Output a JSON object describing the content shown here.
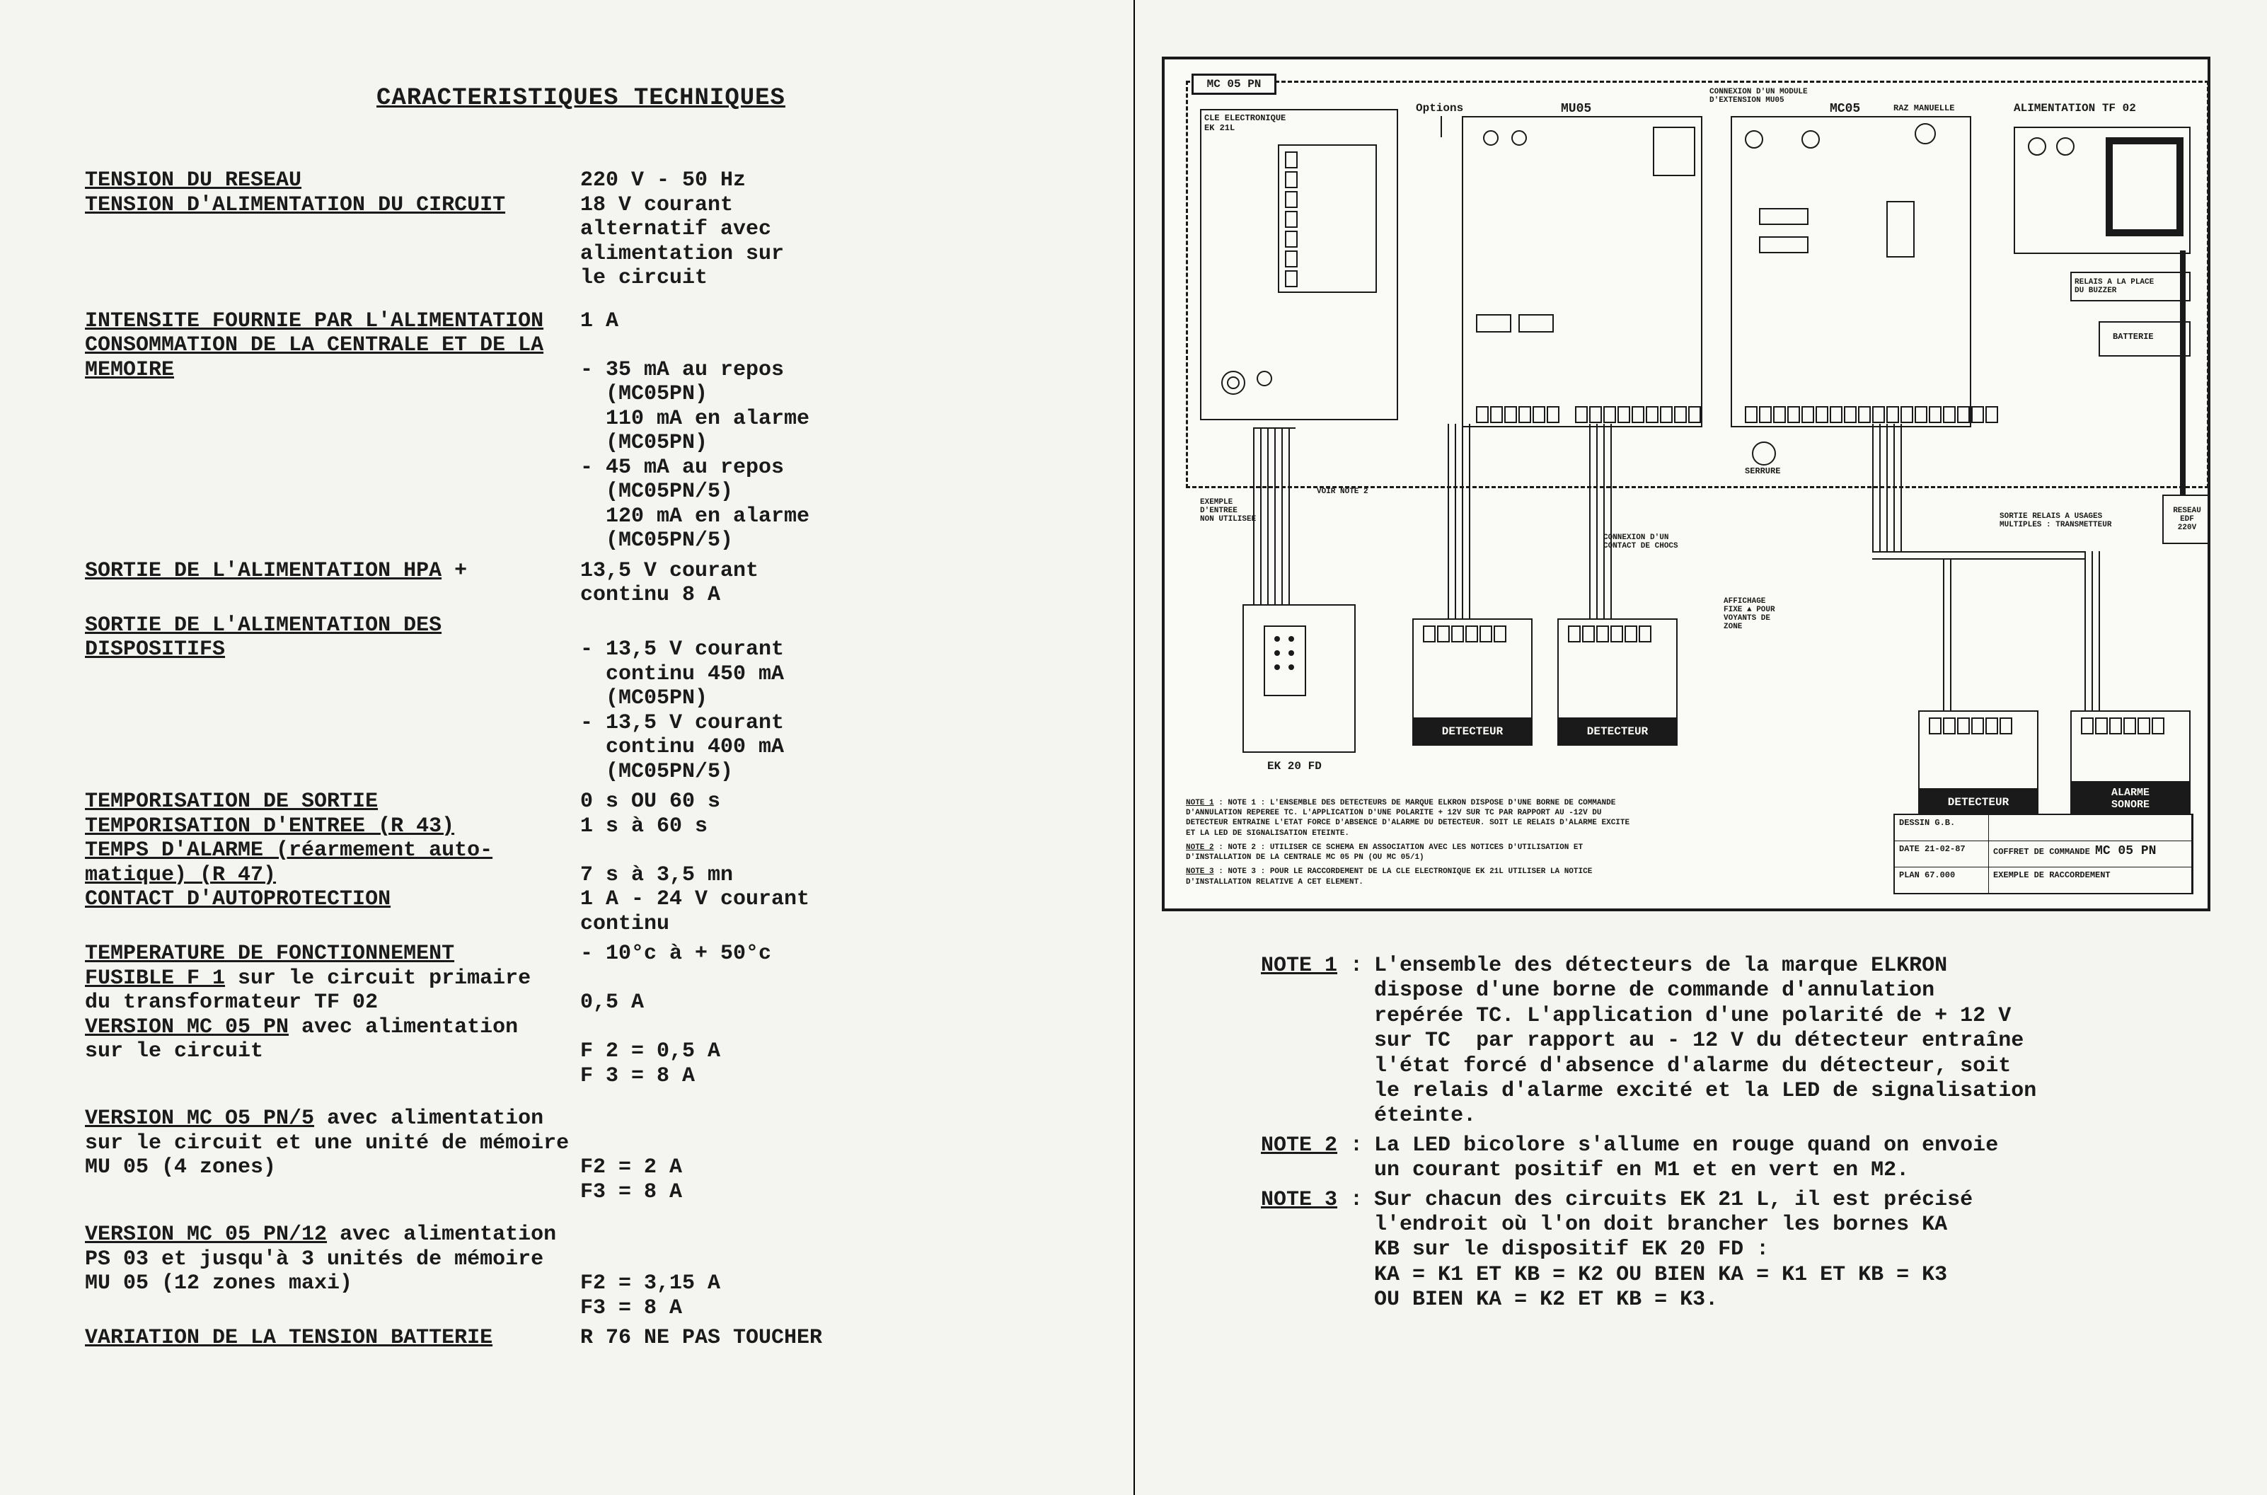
{
  "left": {
    "title": "CARACTERISTIQUES TECHNIQUES",
    "specs": [
      {
        "label_ul": "TENSION DU RESEAU",
        "label_rest": "",
        "value": "220 V - 50 Hz"
      },
      {
        "label_ul": "TENSION D'ALIMENTATION DU CIRCUIT",
        "label_rest": "",
        "value": "18 V courant\nalternatif avec\nalimentation sur\nle circuit",
        "gap_after": "m"
      },
      {
        "label_ul": "INTENSITE FOURNIE PAR L'ALIMENTATION",
        "label_rest": "",
        "value": "1 A"
      },
      {
        "label_ul": "CONSOMMATION DE LA CENTRALE ET DE LA\nMEMOIRE",
        "label_rest": "",
        "value": "\n- 35 mA au repos\n  (MC05PN)\n  110 mA en alarme\n  (MC05PN)\n- 45 mA au repos\n  (MC05PN/5)\n  120 mA en alarme\n  (MC05PN/5)",
        "gap_after": "s"
      },
      {
        "label_ul": "SORTIE DE L'ALIMENTATION HPA",
        "label_rest": " +",
        "value": "13,5 V courant\ncontinu 8 A",
        "gap_after": "s"
      },
      {
        "label_ul": "SORTIE DE L'ALIMENTATION DES\nDISPOSITIFS",
        "label_rest": "",
        "value": "\n- 13,5 V courant\n  continu 450 mA\n  (MC05PN)\n- 13,5 V courant\n  continu 400 mA\n  (MC05PN/5)",
        "gap_after": "s"
      },
      {
        "label_ul": "TEMPORISATION DE SORTIE",
        "label_rest": "",
        "value": "0 s OU 60 s"
      },
      {
        "label_ul": "TEMPORISATION D'ENTREE (R 43)",
        "label_rest": "",
        "value": "1 s à 60 s"
      },
      {
        "label_ul": "TEMPS D'ALARME (réarmement auto-\nmatique) (R 47)",
        "label_rest": "",
        "value": "\n7 s à 3,5 mn"
      },
      {
        "label_ul": "CONTACT D'AUTOPROTECTION",
        "label_rest": "",
        "value": "1 A - 24 V courant\ncontinu",
        "gap_after": "s"
      },
      {
        "label_ul": "TEMPERATURE DE FONCTIONNEMENT",
        "label_rest": "",
        "value": "- 10°c à + 50°c"
      },
      {
        "label_ul": "FUSIBLE F 1",
        "label_rest": " sur le circuit primaire\ndu transformateur TF 02",
        "value": "\n0,5 A"
      },
      {
        "label_ul": "VERSION MC 05 PN",
        "label_rest": " avec alimentation\nsur le circuit",
        "value": "\nF 2 = 0,5 A\nF 3 = 8 A",
        "gap_after": "m"
      },
      {
        "label_ul": "VERSION MC O5 PN/5",
        "label_rest": " avec alimentation\nsur le circuit et une unité de mémoire\nMU 05 (4 zones)",
        "value": "\n\nF2 = 2 A\nF3 = 8 A",
        "gap_after": "m"
      },
      {
        "label_ul": "VERSION MC 05 PN/12",
        "label_rest": " avec alimentation\nPS 03 et jusqu'à 3 unités de mémoire\nMU 05 (12 zones maxi)",
        "value": "\n\nF2 = 3,15 A\nF3 = 8 A",
        "gap_after": "s"
      },
      {
        "label_ul": "VARIATION DE LA TENSION BATTERIE",
        "label_rest": "",
        "value": "R 76 NE PAS TOUCHER"
      }
    ]
  },
  "right": {
    "diagram": {
      "top_labels": {
        "mc05pn": "MC 05 PN",
        "options": "Options",
        "mu05": "MU05",
        "connexion": "CONNEXION D'UN MODULE\nD'EXTENSION MU05",
        "mc05": "MC05",
        "raz": "RAZ MANUELLE",
        "alim": "ALIMENTATION TF 02"
      },
      "left_block": {
        "title": "CLE ELECTRONIQUE\nEK 21L"
      },
      "ext_labels": {
        "ek20fd": "EK 20 FD",
        "detecteur": "DETECTEUR",
        "alarme": "ALARME\nSONORE",
        "edf": "RESEAU\nEDF\n220V",
        "batt": "BATTERIE",
        "relais": "RELAIS A LA PLACE\nDU BUZZER",
        "exemple": "EXEMPLE\nD'ENTREE\nNON UTILISEE",
        "relais_out": "SORTIE RELAIS A USAGES\nMULTIPLES : TRANSMETTEUR",
        "contact_choc": "CONNEXION D'UN\nCONTACT DE CHOCS",
        "affich": "AFFICHAGE\nFIXE ▲ POUR\nVOYANTS DE\nZONE",
        "serrure": "SERRURE",
        "voir_note2": "VOIR NOTE 2"
      },
      "mini_notes": {
        "n1": "NOTE 1 : L'ENSEMBLE DES DETECTEURS DE MARQUE ELKRON DISPOSE D'UNE BORNE DE COMMANDE D'ANNULATION REPEREE TC. L'APPLICATION D'UNE POLARITE + 12V SUR TC PAR RAPPORT AU -12V DU DETECTEUR ENTRAINE L'ETAT FORCE D'ABSENCE D'ALARME DU DETECTEUR. SOIT LE RELAIS D'ALARME EXCITE ET LA LED DE SIGNALISATION ETEINTE.",
        "n2": "NOTE 2 : UTILISER CE SCHEMA EN ASSOCIATION AVEC LES NOTICES D'UTILISATION ET D'INSTALLATION DE LA CENTRALE MC 05 PN (OU MC 05/1)",
        "n3": "NOTE 3 : POUR LE RACCORDEMENT DE LA CLE ELECTRONIQUE EK 21L UTILISER LA NOTICE D'INSTALLATION RELATIVE A CET ELEMENT."
      },
      "titleblock": {
        "r1a": "DESSIN G.B.",
        "r1b": "",
        "r2a": "DATE 21-02-87",
        "r2b": "COFFRET DE COMMANDE",
        "r2c": "MC 05 PN",
        "r3a": "PLAN 67.000",
        "r3b": "EXEMPLE DE RACCORDEMENT"
      }
    },
    "notes": [
      {
        "key": "NOTE 1",
        "body": "L'ensemble des détecteurs de la marque ELKRON\ndispose d'une borne de commande d'annulation\nrepérée TC. L'application d'une polarité de + 12 V\nsur TC  par rapport au - 12 V du détecteur entraîne\nl'état forcé d'absence d'alarme du détecteur, soit\nle relais d'alarme excité et la LED de signalisation\néteinte."
      },
      {
        "key": "NOTE 2",
        "body": "La LED bicolore s'allume en rouge quand on envoie\nun courant positif en M1 et en vert en M2."
      },
      {
        "key": "NOTE 3",
        "body": "Sur chacun des circuits EK 21 L, il est précisé\nl'endroit où l'on doit brancher les bornes KA\nKB sur le dispositif EK 20 FD :\nKA = K1 ET KB = K2 OU BIEN KA = K1 ET KB = K3\nOU BIEN KA = K2 ET KB = K3."
      }
    ]
  }
}
